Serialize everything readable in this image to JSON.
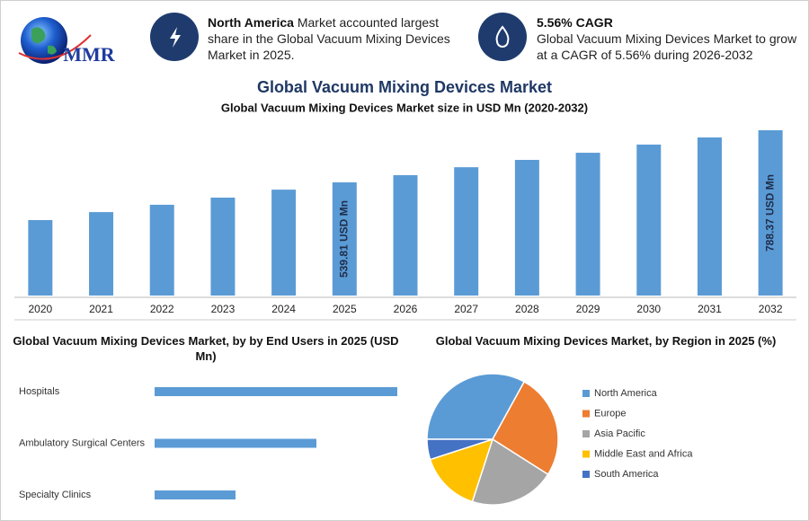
{
  "header": {
    "logo": "MMR",
    "title": "Global Vacuum Mixing Devices Market",
    "info": [
      {
        "highlight": "North America",
        "text": "Market accounted largest share in the Global Vacuum Mixing Devices Market in 2025."
      },
      {
        "highlight": "5.56% CAGR",
        "text": "Global Vacuum Mixing Devices Market to grow at a CAGR of 5.56% during 2026-2032"
      }
    ]
  },
  "chart_data": [
    {
      "type": "bar",
      "title": "Global Vacuum Mixing Devices Market size in USD Mn (2020-2032)",
      "categories": [
        "2020",
        "2021",
        "2022",
        "2023",
        "2024",
        "2025",
        "2026",
        "2027",
        "2028",
        "2029",
        "2030",
        "2031",
        "2032"
      ],
      "values": [
        360,
        398,
        433,
        467,
        505,
        539.81,
        574,
        612,
        647,
        681,
        720,
        754,
        788.37
      ],
      "value_labels": [
        null,
        null,
        null,
        null,
        null,
        "539.81 USD Mn",
        null,
        null,
        null,
        null,
        null,
        null,
        "788.37 USD Mn"
      ],
      "color": "#5b9bd5"
    },
    {
      "type": "bar",
      "orientation": "horizontal",
      "title": "Global Vacuum Mixing Devices Market, by by End Users in 2025 (USD Mn)",
      "categories": [
        "Hospitals",
        "Ambulatory Surgical Centers",
        "Specialty Clinics"
      ],
      "values": [
        270,
        180,
        90
      ],
      "color": "#5b9bd5"
    },
    {
      "type": "pie",
      "title": "Global Vacuum Mixing Devices Market, by Region in 2025 (%)",
      "categories": [
        "North America",
        "Europe",
        "Asia Pacific",
        "Middle East and Africa",
        "South America"
      ],
      "values": [
        33,
        26,
        21,
        15,
        5
      ],
      "colors": [
        "#5b9bd5",
        "#ed7d31",
        "#a5a5a5",
        "#ffc000",
        "#4472c4"
      ]
    }
  ]
}
